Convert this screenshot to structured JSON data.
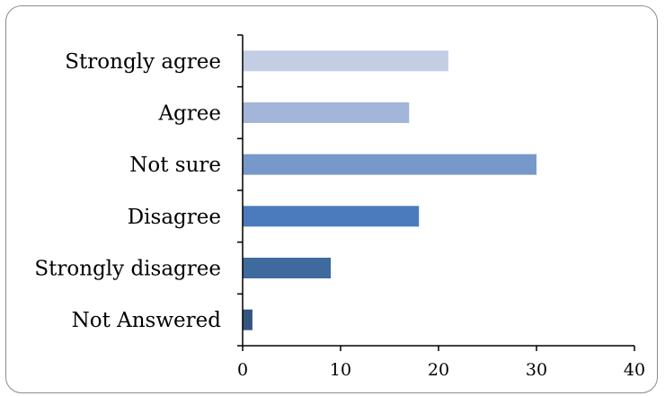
{
  "chart_data": {
    "type": "bar",
    "orientation": "horizontal",
    "title": "",
    "xlabel": "",
    "ylabel": "",
    "categories": [
      "Strongly agree",
      "Agree",
      "Not sure",
      "Disagree",
      "Strongly disagree",
      "Not Answered"
    ],
    "values": [
      21,
      17,
      30,
      18,
      9,
      1
    ],
    "xlim": [
      0,
      40
    ],
    "xticks": [
      0,
      10,
      20,
      30,
      40
    ],
    "grid": false,
    "legend": "none",
    "colors": [
      "#c3cee4",
      "#a3b5d8",
      "#7799c9",
      "#4b7bbc",
      "#3e6a9e",
      "#34557f"
    ]
  }
}
